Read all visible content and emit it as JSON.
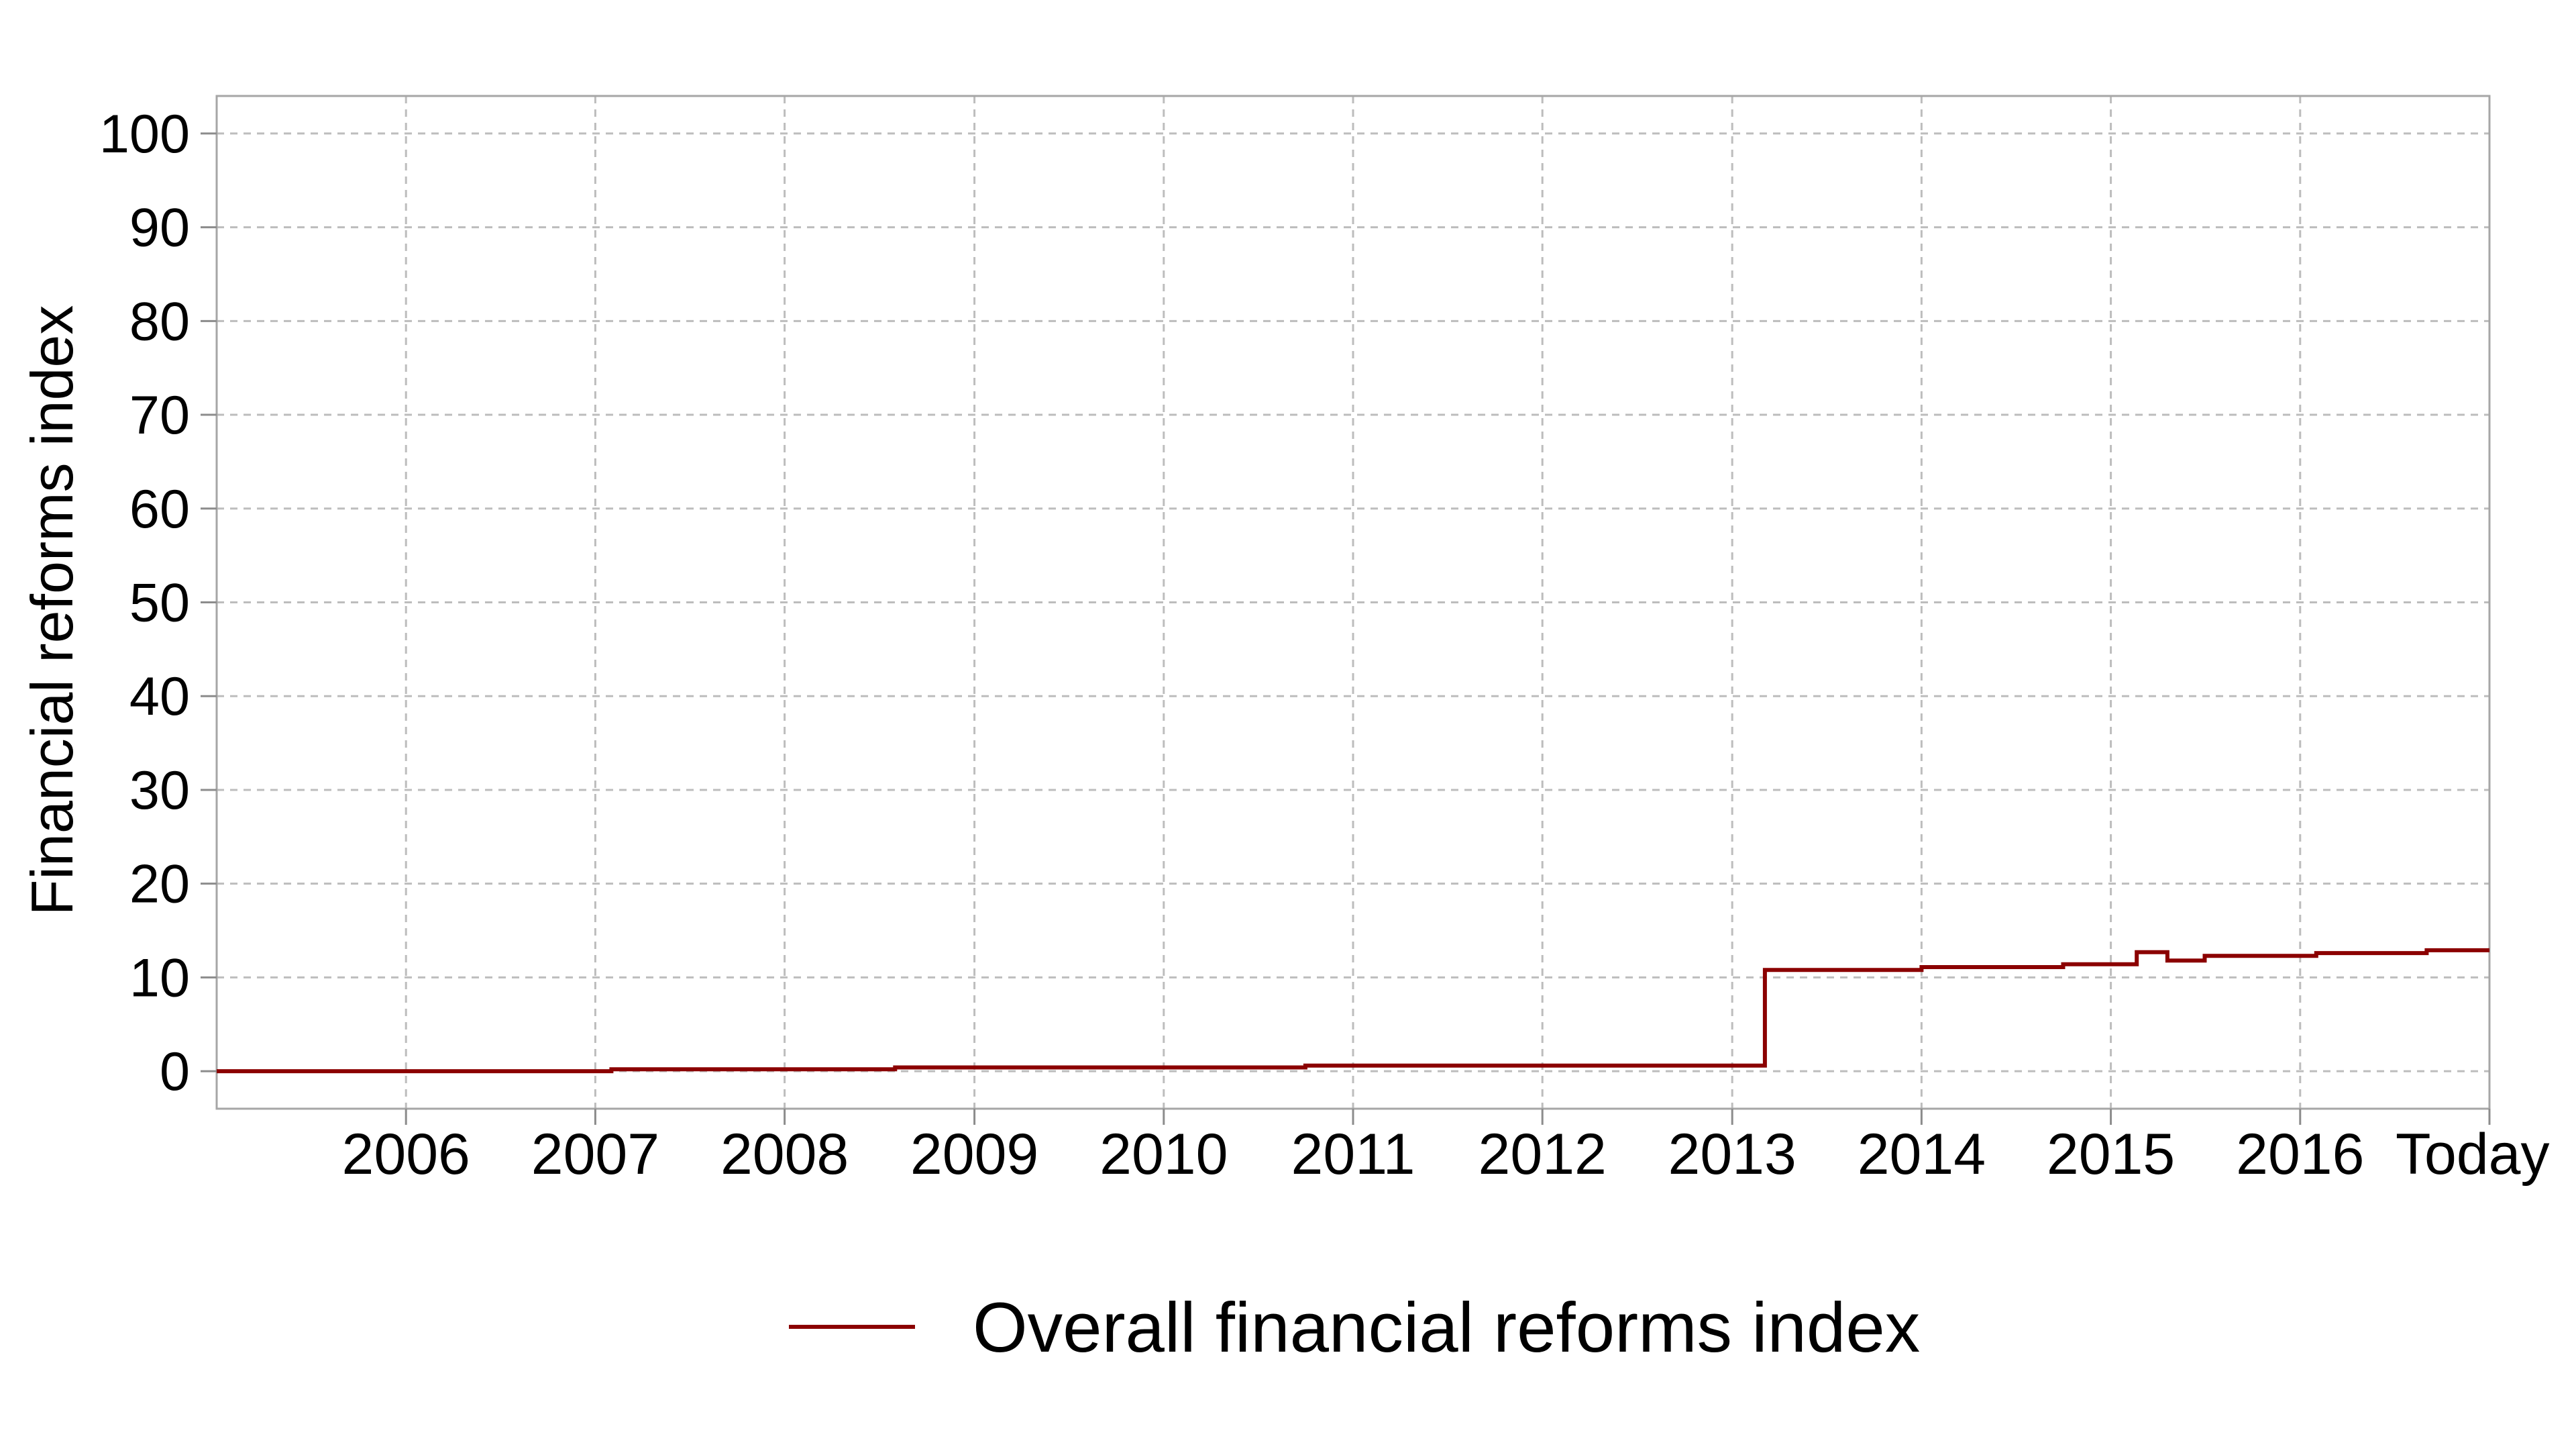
{
  "chart_data": {
    "type": "line",
    "title": "",
    "xlabel": "",
    "ylabel": "Financial reforms index",
    "ylim": [
      -4,
      104
    ],
    "xlim": [
      "2005-01-01",
      "2016-12-31"
    ],
    "y_ticks": [
      0,
      10,
      20,
      30,
      40,
      50,
      60,
      70,
      80,
      90,
      100
    ],
    "x_ticks": [
      {
        "date": "2006-01-01",
        "label": "2006"
      },
      {
        "date": "2007-01-01",
        "label": "2007"
      },
      {
        "date": "2008-01-01",
        "label": "2008"
      },
      {
        "date": "2009-01-01",
        "label": "2009"
      },
      {
        "date": "2010-01-01",
        "label": "2010"
      },
      {
        "date": "2011-01-01",
        "label": "2011"
      },
      {
        "date": "2012-01-01",
        "label": "2012"
      },
      {
        "date": "2013-01-01",
        "label": "2013"
      },
      {
        "date": "2014-01-01",
        "label": "2014"
      },
      {
        "date": "2015-01-01",
        "label": "2015"
      },
      {
        "date": "2016-01-01",
        "label": "2016"
      },
      {
        "date": "2016-12-31",
        "label": "Today"
      }
    ],
    "grid": true,
    "line_style": "step",
    "legend_position": "bottom-center",
    "series": [
      {
        "name": "Overall financial reforms index",
        "color": "#8b0000",
        "points": [
          {
            "x": "2005-01-01",
            "y": 0.0
          },
          {
            "x": "2007-02-01",
            "y": 0.2
          },
          {
            "x": "2008-08-01",
            "y": 0.4
          },
          {
            "x": "2010-10-01",
            "y": 0.6
          },
          {
            "x": "2013-03-05",
            "y": 10.8
          },
          {
            "x": "2014-01-01",
            "y": 11.1
          },
          {
            "x": "2014-10-01",
            "y": 11.4
          },
          {
            "x": "2015-02-20",
            "y": 12.7
          },
          {
            "x": "2015-04-20",
            "y": 11.8
          },
          {
            "x": "2015-07-01",
            "y": 12.3
          },
          {
            "x": "2016-02-01",
            "y": 12.6
          },
          {
            "x": "2016-09-01",
            "y": 12.9
          },
          {
            "x": "2016-12-31",
            "y": 12.9
          }
        ]
      }
    ]
  }
}
